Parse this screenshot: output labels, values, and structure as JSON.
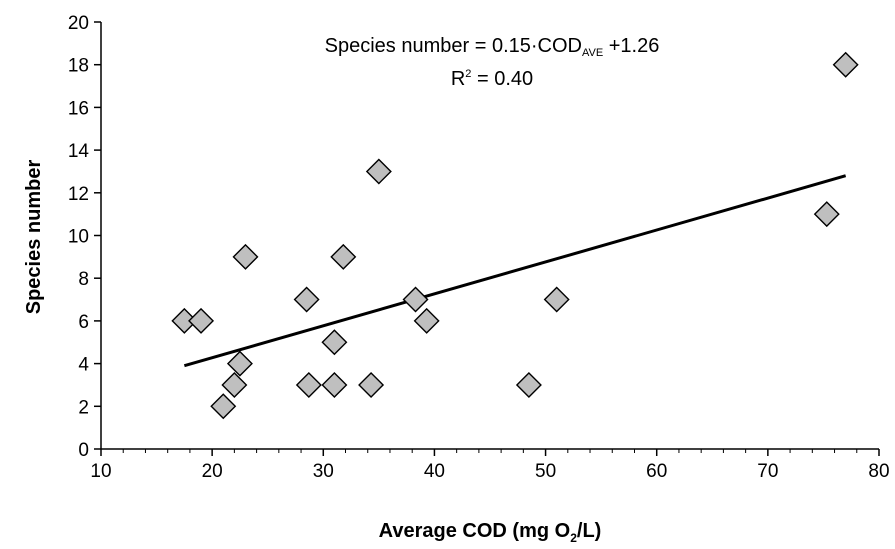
{
  "chart_data": {
    "type": "scatter",
    "xlabel": {
      "prefix": "Average COD (mg O",
      "sub": "2",
      "suffix": "/L)"
    },
    "ylabel": "Species number",
    "xlim": [
      10,
      80
    ],
    "ylim": [
      0,
      20
    ],
    "x_ticks": [
      10,
      20,
      30,
      40,
      50,
      60,
      70,
      80
    ],
    "y_ticks": [
      0,
      2,
      4,
      6,
      8,
      10,
      12,
      14,
      16,
      18,
      20
    ],
    "grid": false,
    "marker": "diamond",
    "marker_fill": "#bfbfbf",
    "marker_stroke": "#000000",
    "points": [
      {
        "x": 17.5,
        "y": 6
      },
      {
        "x": 19.0,
        "y": 6
      },
      {
        "x": 21.0,
        "y": 2
      },
      {
        "x": 22.0,
        "y": 3
      },
      {
        "x": 22.5,
        "y": 4
      },
      {
        "x": 23.0,
        "y": 9
      },
      {
        "x": 28.5,
        "y": 7
      },
      {
        "x": 28.7,
        "y": 3
      },
      {
        "x": 31.0,
        "y": 5
      },
      {
        "x": 31.0,
        "y": 3
      },
      {
        "x": 31.8,
        "y": 9
      },
      {
        "x": 34.3,
        "y": 3
      },
      {
        "x": 35.0,
        "y": 13
      },
      {
        "x": 38.3,
        "y": 7
      },
      {
        "x": 39.3,
        "y": 6
      },
      {
        "x": 48.5,
        "y": 3
      },
      {
        "x": 51.0,
        "y": 7
      },
      {
        "x": 75.3,
        "y": 11
      },
      {
        "x": 77.0,
        "y": 18
      }
    ],
    "trendline": {
      "x_start": 17.5,
      "y_start": 3.9,
      "x_end": 77.0,
      "y_end": 12.8,
      "color": "#000000"
    },
    "annotation": {
      "equation_prefix": "Species number = 0.15·COD",
      "equation_sub": "AVE",
      "equation_suffix": " +1.26",
      "r_prefix": "R",
      "r_sup": "2",
      "r_suffix": " = 0.40"
    }
  }
}
